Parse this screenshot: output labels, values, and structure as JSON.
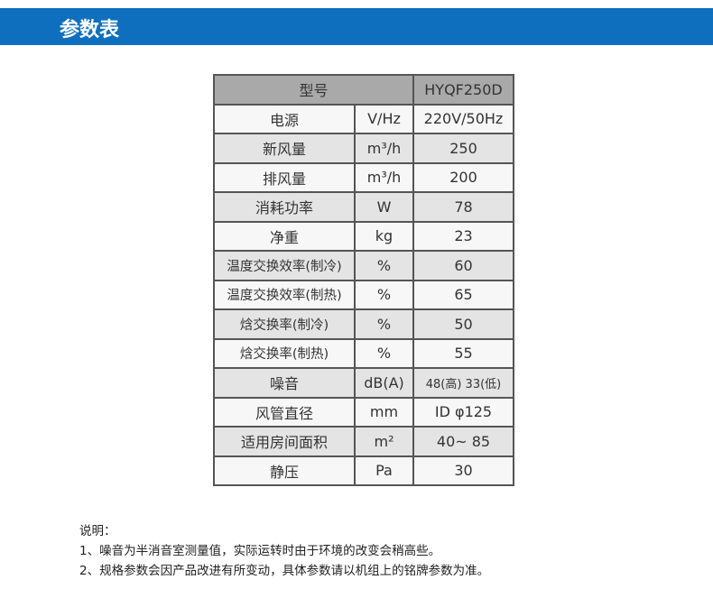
{
  "header": {
    "title": "参数表"
  },
  "table": {
    "model_label": "型号",
    "model_value": "HYQF250D",
    "rows": [
      {
        "name": "电源",
        "unit": "V/Hz",
        "value": "220V/50Hz"
      },
      {
        "name": "新风量",
        "unit": "m³/h",
        "value": "250"
      },
      {
        "name": "排风量",
        "unit": "m³/h",
        "value": "200"
      },
      {
        "name": "消耗功率",
        "unit": "W",
        "value": "78"
      },
      {
        "name": "净重",
        "unit": "kg",
        "value": "23"
      },
      {
        "name": "温度交换效率(制冷)",
        "unit": "%",
        "value": "60"
      },
      {
        "name": "温度交换效率(制热)",
        "unit": "%",
        "value": "65"
      },
      {
        "name": "焓交换率(制冷)",
        "unit": "%",
        "value": "50"
      },
      {
        "name": "焓交换率(制热)",
        "unit": "%",
        "value": "55"
      },
      {
        "name": "噪音",
        "unit": "dB(A)",
        "value": "48(高) 33(低)"
      },
      {
        "name": "风管直径",
        "unit": "mm",
        "value": "ID φ125"
      },
      {
        "name": "适用房间面积",
        "unit": "m²",
        "value": "40~ 85"
      },
      {
        "name": "静压",
        "unit": "Pa",
        "value": "30"
      }
    ]
  },
  "notes": {
    "title": "说明：",
    "items": [
      "1、噪音为半消音室测量值，实际运转时由于环境的改变会稍高些。",
      "2、规格参数会因产品改进有所变动，具体参数请以机组上的铭牌参数为准。"
    ]
  }
}
